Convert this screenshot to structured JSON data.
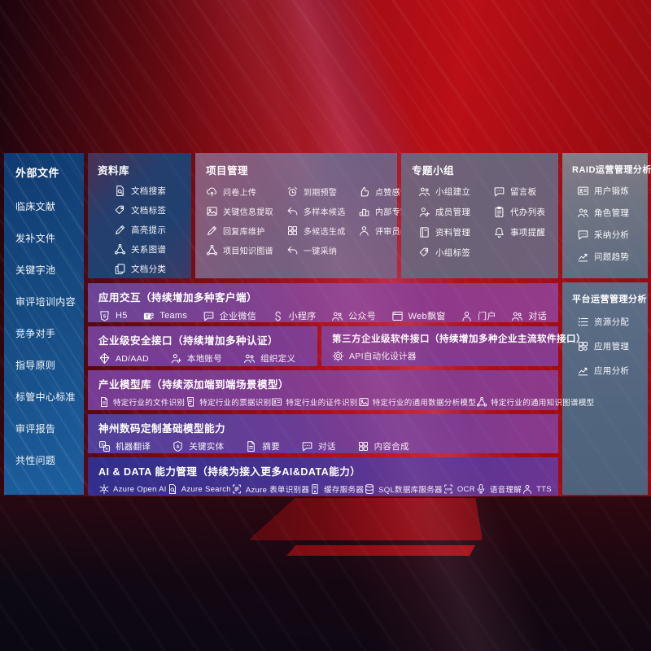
{
  "colors": {
    "background_red": "#a80d15",
    "panel_blue": "#15497f",
    "panel_navy": "#253e6d",
    "panel_purple": "#833a8d",
    "panel_indigo": "#312e8b",
    "panel_gray": "#5f6b82",
    "text": "#ffffff"
  },
  "external_files": {
    "title": "外部文件",
    "items": [
      "临床文献",
      "发补文件",
      "关键字池",
      "审评培训内容",
      "竞争对手",
      "指导原则",
      "标管中心标准",
      "审评报告",
      "共性问题"
    ]
  },
  "repository": {
    "title": "资料库",
    "items": [
      {
        "label": "文档搜索",
        "icon": "doc-search"
      },
      {
        "label": "文档标签",
        "icon": "tag"
      },
      {
        "label": "高亮提示",
        "icon": "pencil"
      },
      {
        "label": "关系图谱",
        "icon": "network"
      },
      {
        "label": "文档分类",
        "icon": "copy"
      }
    ]
  },
  "project_mgmt": {
    "title": "项目管理",
    "items": [
      {
        "label": "问卷上传",
        "icon": "cloud-up"
      },
      {
        "label": "到期预警",
        "icon": "alarm"
      },
      {
        "label": "点赞感谢",
        "icon": "thumb"
      },
      {
        "label": "关键信息提取",
        "icon": "image"
      },
      {
        "label": "多样本候选",
        "icon": "reply"
      },
      {
        "label": "内部专家排名",
        "icon": "podium"
      },
      {
        "label": "回复库维护",
        "icon": "pencil"
      },
      {
        "label": "多候选生成",
        "icon": "puzzle"
      },
      {
        "label": "评审员画像",
        "icon": "person"
      },
      {
        "label": "项目知识图谱",
        "icon": "network"
      },
      {
        "label": "一键采纳",
        "icon": "reply"
      }
    ]
  },
  "topic_groups": {
    "title": "专题小组",
    "items": [
      {
        "label": "小组建立",
        "icon": "people"
      },
      {
        "label": "留言板",
        "icon": "bbs"
      },
      {
        "label": "成员管理",
        "icon": "person-add"
      },
      {
        "label": "代办列表",
        "icon": "clipboard"
      },
      {
        "label": "资料管理",
        "icon": "book"
      },
      {
        "label": "事项提醒",
        "icon": "bell"
      },
      {
        "label": "小组标签",
        "icon": "tag"
      }
    ]
  },
  "raid_ops": {
    "title": "RAID运营管理分析",
    "items": [
      {
        "label": "用户锻炼",
        "icon": "card"
      },
      {
        "label": "角色管理",
        "icon": "people"
      },
      {
        "label": "采纳分析",
        "icon": "qa-chat"
      },
      {
        "label": "问题趋势",
        "icon": "chart"
      }
    ]
  },
  "platform_ops": {
    "title": "平台运营管理分析",
    "items": [
      {
        "label": "资源分配",
        "icon": "list"
      },
      {
        "label": "应用管理",
        "icon": "grid"
      },
      {
        "label": "应用分析",
        "icon": "chart-box"
      }
    ]
  },
  "interaction": {
    "title": "应用交互（持续增加多种客户端）",
    "items": [
      {
        "label": "H5",
        "icon": "h5"
      },
      {
        "label": "Teams",
        "icon": "teams"
      },
      {
        "label": "企业微信",
        "icon": "wechat"
      },
      {
        "label": "小程序",
        "icon": "scurve"
      },
      {
        "label": "公众号",
        "icon": "people"
      },
      {
        "label": "Web飘窗",
        "icon": "browser"
      },
      {
        "label": "门户",
        "icon": "person-desk"
      },
      {
        "label": "对话",
        "icon": "people-chat"
      }
    ]
  },
  "security_api": {
    "title": "企业级安全接口（持续增加多种认证）",
    "items": [
      {
        "label": "AD/AAD",
        "icon": "diamond"
      },
      {
        "label": "本地账号",
        "icon": "person-badge"
      },
      {
        "label": "组织定义",
        "icon": "people-org"
      }
    ]
  },
  "thirdparty_api": {
    "title": "第三方企业级软件接口（持续增加多种企业主流软件接口）",
    "items": [
      {
        "label": "API自动化设计器",
        "icon": "gear"
      }
    ]
  },
  "industry_models": {
    "title": "产业模型库（持续添加端到端场景模型）",
    "items": [
      {
        "label": "特定行业的文件识别",
        "icon": "doc"
      },
      {
        "label": "特定行业的票据识别",
        "icon": "receipt"
      },
      {
        "label": "特定行业的证件识别",
        "icon": "card"
      },
      {
        "label": "特定行业的通用数据分析模型",
        "icon": "image"
      },
      {
        "label": "特定行业的通用知识图谱模型",
        "icon": "network"
      }
    ]
  },
  "base_models": {
    "title": "神州数码定制基础模型能力",
    "items": [
      {
        "label": "机器翻译",
        "icon": "translate"
      },
      {
        "label": "关键实体",
        "icon": "shield-a"
      },
      {
        "label": "摘要",
        "icon": "doc"
      },
      {
        "label": "对话",
        "icon": "chat-dots"
      },
      {
        "label": "内容合成",
        "icon": "puzzle"
      }
    ]
  },
  "ai_data": {
    "title": "AI & DATA 能力管理（持续为接入更多AI&DATA能力）",
    "items": [
      {
        "label": "Azure Open AI",
        "icon": "openai"
      },
      {
        "label": "Azure Search",
        "icon": "azure-search"
      },
      {
        "label": "Azure 表单识别器",
        "icon": "scan"
      },
      {
        "label": "缓存服务器",
        "icon": "server"
      },
      {
        "label": "SQL数据库服务器",
        "icon": "db"
      },
      {
        "label": "OCR",
        "icon": "ocr"
      },
      {
        "label": "语音理解",
        "icon": "speech"
      },
      {
        "label": "TTS",
        "icon": "tts"
      }
    ]
  }
}
